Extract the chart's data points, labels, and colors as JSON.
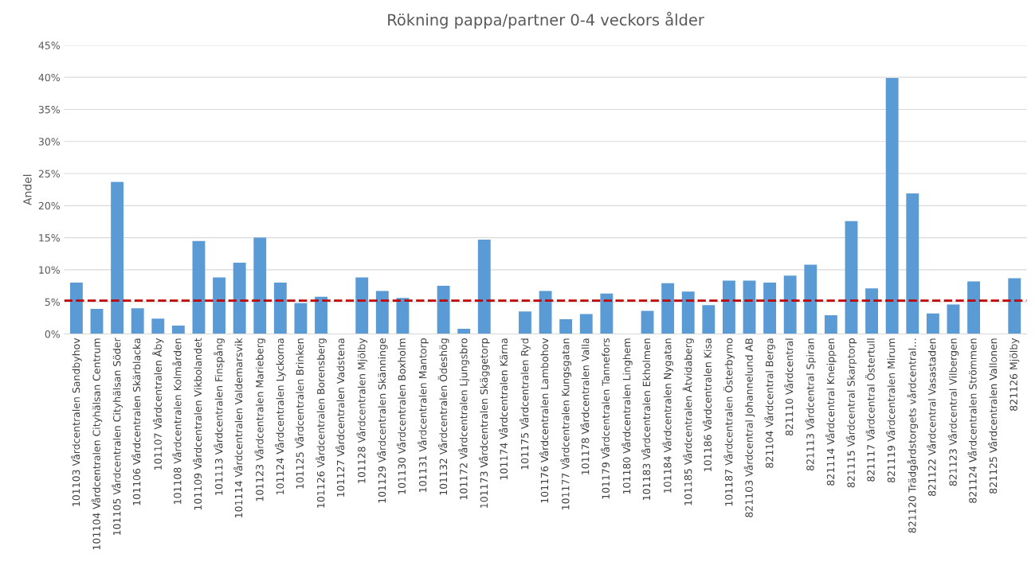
{
  "chart_data": {
    "type": "bar",
    "title": "Rökning pappa/partner 0-4 veckors ålder",
    "ylabel": "Andel",
    "categories": [
      "101103 Vårdcentralen Sandbyhov",
      "101104 Vårdcentralen Cityhälsan Centrum",
      "101105 Vårdcentralen Cityhälsan Söder",
      "101106 Vårdcentralen Skärblacka",
      "101107 Vårdcentralen Åby",
      "101108 Vårdcentralen Kolmården",
      "101109 Vårdcentralen Vikbolandet",
      "101113 Vårdcentralen Finspång",
      "101114 Vårdcentralen Valdemarsvik",
      "101123 Vårdcentralen Marieberg",
      "101124 Vårdcentralen Lyckorna",
      "101125 Vårdcentralen Brinken",
      "101126 Vårdcentralen Borensberg",
      "101127 Vårdcentralen Vadstena",
      "101128 Vårdcentralen Mjölby",
      "101129 Vårdcentralen Skänninge",
      "101130 Vårdcentralen Boxholm",
      "101131 Vårdcentralen Mantorp",
      "101132 Vårdcentralen Ödeshög",
      "101172 Vårdcentralen Ljungsbro",
      "101173 Vårdcentralen Skäggetorp",
      "101174 Vårdcentralen Kärna",
      "101175 Vårdcentralen Ryd",
      "101176 Vårdcentralen Lambohov",
      "101177 Vårdcentralen Kungsgatan",
      "101178 Vårdcentralen Valla",
      "101179 Vårdcentralen Tannefors",
      "101180 Vårdcentralen Linghem",
      "101183 Vårdcentralen Ekholmen",
      "101184 Vårdcentralen Nygatan",
      "101185 Vårdcentralen Åtvidaberg",
      "101186 Vårdcentralen Kisa",
      "101187 Vårdcentralen Österbymo",
      "821103 Vårdcentral Johannelund AB",
      "821104 Vårdcentral Berga",
      "821110 Vårdcentral",
      "821113 Vårdcentral Spiran",
      "821114 Vårdcentral Kneippen",
      "821115 Vårdcentral Skarptorp",
      "821117 Vårdcentral Östertull",
      "821119 Vårdcentralen Mirum",
      "821120 Trädgårdstorgets vårdcentral…",
      "821122 Vårdcentral Vasastaden",
      "821123 Vårdcentral Vilbergen",
      "821124 Vårdcentralen Strömmen",
      "821125 Vårdcentralen Vallonen",
      "821126 Mjölby"
    ],
    "values": [
      8.0,
      3.9,
      23.7,
      4.0,
      2.4,
      1.3,
      14.5,
      8.8,
      11.1,
      15.0,
      8.0,
      4.8,
      5.8,
      0,
      8.8,
      6.7,
      5.6,
      0,
      7.5,
      0.8,
      14.7,
      0,
      3.5,
      6.7,
      2.3,
      3.1,
      6.3,
      0,
      3.6,
      7.9,
      6.6,
      4.5,
      8.3,
      8.3,
      8.0,
      9.1,
      10.8,
      2.9,
      17.6,
      7.1,
      39.9,
      21.9,
      3.2,
      4.6,
      8.2,
      0,
      8.7
    ],
    "color": "#5b9bd5",
    "ylim": [
      0,
      45
    ],
    "yticks": [
      {
        "value": 0,
        "label": "0%"
      },
      {
        "value": 5,
        "label": "5%"
      },
      {
        "value": 10,
        "label": "10%"
      },
      {
        "value": 15,
        "label": "15%"
      },
      {
        "value": 20,
        "label": "20%"
      },
      {
        "value": 25,
        "label": "25%"
      },
      {
        "value": 30,
        "label": "30%"
      },
      {
        "value": 35,
        "label": "35%"
      },
      {
        "value": 40,
        "label": "40%"
      },
      {
        "value": 45,
        "label": "45%"
      }
    ],
    "grid": "y",
    "ref_lines": [
      {
        "axis": "y",
        "value": 5.2,
        "color": "#c00000",
        "line_style": "dashed"
      }
    ]
  }
}
